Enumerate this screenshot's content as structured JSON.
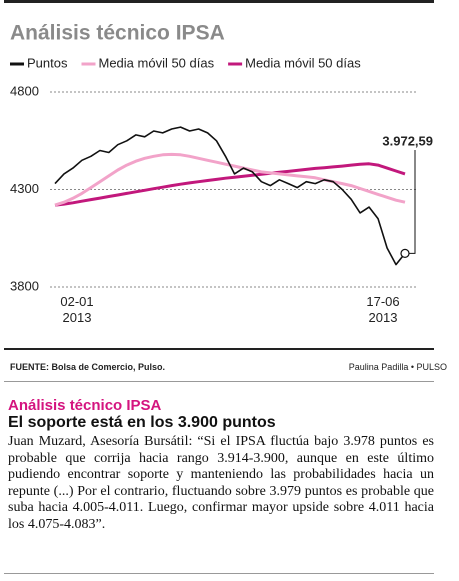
{
  "chart_data": {
    "type": "line",
    "title": "Análisis técnico IPSA",
    "categories": [
      "02-01 2013",
      null,
      null,
      null,
      null,
      null,
      null,
      null,
      null,
      null,
      null,
      null,
      null,
      null,
      null,
      null,
      null,
      null,
      null,
      null,
      null,
      null,
      null,
      null,
      null,
      null,
      null,
      null,
      null,
      null,
      null,
      null,
      null,
      null,
      null,
      null,
      null,
      null,
      null,
      "17-06 2013"
    ],
    "series": [
      {
        "name": "Puntos",
        "color": "#111111",
        "values": [
          4330,
          4380,
          4410,
          4450,
          4470,
          4500,
          4490,
          4530,
          4550,
          4580,
          4570,
          4600,
          4590,
          4610,
          4620,
          4600,
          4610,
          4590,
          4550,
          4470,
          4380,
          4410,
          4390,
          4340,
          4320,
          4350,
          4330,
          4310,
          4340,
          4330,
          4350,
          4340,
          4300,
          4250,
          4180,
          4210,
          4150,
          4000,
          3915,
          3972.59
        ],
        "value_labels": [
          null,
          null,
          null,
          null,
          null,
          null,
          null,
          null,
          null,
          null,
          null,
          null,
          null,
          null,
          null,
          null,
          null,
          null,
          null,
          null,
          null,
          null,
          null,
          null,
          null,
          null,
          null,
          null,
          null,
          null,
          null,
          null,
          null,
          null,
          null,
          null,
          null,
          null,
          null,
          "3.972,59"
        ]
      },
      {
        "name": "Media móvil 50 días",
        "color": "#f2a3c9",
        "values": [
          4220,
          4235,
          4255,
          4280,
          4310,
          4340,
          4370,
          4400,
          4425,
          4445,
          4460,
          4470,
          4478,
          4480,
          4478,
          4470,
          4460,
          4450,
          4440,
          4430,
          4420,
          4410,
          4400,
          4390,
          4385,
          4380,
          4375,
          4370,
          4365,
          4360,
          4350,
          4340,
          4330,
          4320,
          4305,
          4290,
          4275,
          4260,
          4245,
          4235
        ]
      },
      {
        "name": "Media móvil 50 días",
        "color": "#c2187c",
        "values": [
          4220,
          4225,
          4232,
          4240,
          4248,
          4256,
          4264,
          4272,
          4280,
          4288,
          4296,
          4304,
          4312,
          4320,
          4327,
          4334,
          4340,
          4346,
          4352,
          4358,
          4363,
          4368,
          4373,
          4378,
          4383,
          4388,
          4393,
          4398,
          4403,
          4408,
          4412,
          4416,
          4420,
          4425,
          4430,
          4432,
          4425,
          4410,
          4395,
          4380
        ]
      }
    ],
    "ylim": [
      3800,
      4800
    ],
    "yticks": [
      3800,
      4300,
      4800
    ],
    "grid": true
  },
  "source": "FUENTE: Bolsa de Comercio, Pulso.",
  "credit": "Paulina Padilla • PULSO",
  "article": {
    "kicker": "Análisis técnico IPSA",
    "headline": "El soporte está en los 3.900 puntos",
    "body": "Juan Muzard, Asesoría Bursátil: “Si el IPSA fluctúa bajo 3.978 puntos es probable que corrija hacia rango 3.914-3.900, aunque en este último pudiendo encontrar soporte y manteniendo las probabilidades hacia un repunte (...) Por el contrario, fluctuando sobre 3.979 puntos es probable que suba hacia 4.005-4.011. Luego, confirmar mayor upside sobre 4.011 hacia los 4.075-4.083”."
  }
}
